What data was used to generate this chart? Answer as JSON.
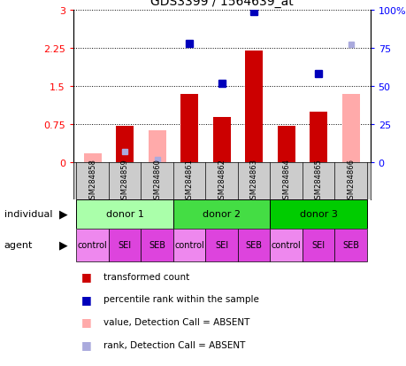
{
  "title": "GDS3399 / 1564639_at",
  "samples": [
    "GSM284858",
    "GSM284859",
    "GSM284860",
    "GSM284861",
    "GSM284862",
    "GSM284863",
    "GSM284864",
    "GSM284865",
    "GSM284866"
  ],
  "transformed_count": [
    null,
    0.72,
    null,
    1.35,
    0.9,
    2.2,
    0.72,
    1.0,
    null
  ],
  "transformed_count_absent": [
    0.18,
    null,
    0.63,
    null,
    null,
    null,
    null,
    null,
    1.35
  ],
  "percentile_rank_left": [
    null,
    null,
    null,
    2.35,
    1.55,
    2.97,
    null,
    1.75,
    null
  ],
  "percentile_rank_absent_left": [
    null,
    0.22,
    0.05,
    null,
    null,
    null,
    null,
    null,
    2.32
  ],
  "ylim_left": [
    0,
    3
  ],
  "ylim_right": [
    0,
    100
  ],
  "yticks_left": [
    0,
    0.75,
    1.5,
    2.25,
    3
  ],
  "yticks_right": [
    0,
    25,
    50,
    75,
    100
  ],
  "ytick_labels_left": [
    "0",
    "0.75",
    "1.5",
    "2.25",
    "3"
  ],
  "ytick_labels_right": [
    "0",
    "25",
    "50",
    "75",
    "100%"
  ],
  "donors": [
    {
      "label": "donor 1",
      "start": 0,
      "end": 3,
      "color": "#aaffaa"
    },
    {
      "label": "donor 2",
      "start": 3,
      "end": 6,
      "color": "#44dd44"
    },
    {
      "label": "donor 3",
      "start": 6,
      "end": 9,
      "color": "#00cc00"
    }
  ],
  "agents": [
    "control",
    "SEI",
    "SEB",
    "control",
    "SEI",
    "SEB",
    "control",
    "SEI",
    "SEB"
  ],
  "agent_colors": [
    "#ee88ee",
    "#dd44dd",
    "#dd44dd",
    "#ee88ee",
    "#dd44dd",
    "#dd44dd",
    "#ee88ee",
    "#dd44dd",
    "#dd44dd"
  ],
  "bar_width": 0.55,
  "red_color": "#cc0000",
  "pink_color": "#ffaaaa",
  "blue_color": "#0000bb",
  "light_blue_color": "#aaaadd",
  "title_fontsize": 10
}
